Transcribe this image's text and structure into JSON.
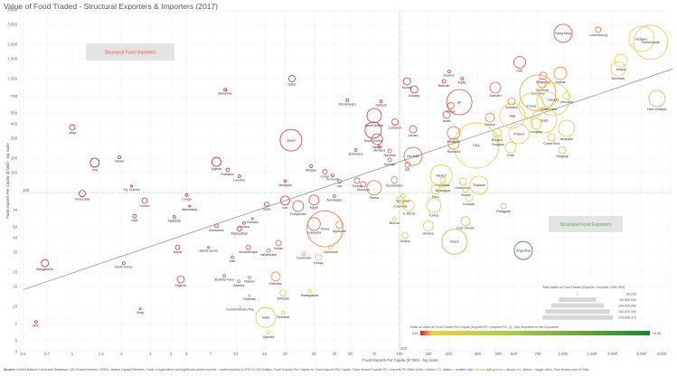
{
  "title": "Value of Food Traded - Structural Exporters & Importers (2017)",
  "chart_data": {
    "type": "scatter",
    "title": "Value of Food Traded - Structural Exporters & Importers (2017)",
    "xlabel": "Food Exports Per Capita ($ '000) - log scale",
    "ylabel": "Food Imports Per Capita ($ '000) - log scale",
    "xscale": "log",
    "yscale": "log",
    "xlim": [
      0.5,
      4600
    ],
    "ylim": [
      3.8,
      4600
    ],
    "xticks": [
      0.5,
      0.7,
      1,
      1.5,
      2,
      3,
      4,
      5,
      7,
      10,
      15,
      20,
      30,
      40,
      50,
      70,
      100,
      150,
      200,
      300,
      400,
      500,
      700,
      1000,
      1500,
      2000,
      3000,
      4000
    ],
    "xtick_labels": [
      "0.5",
      "0.7",
      "1",
      "1.5",
      "2",
      "3",
      "4",
      "5",
      "7",
      "10",
      "15",
      "20",
      "30",
      "40",
      "50",
      "70",
      "100",
      "150",
      "200",
      "300",
      "400",
      "500",
      "700",
      "1,000",
      "1,500",
      "2,000",
      "3,000",
      "4,000"
    ],
    "yticks": [
      4,
      5,
      7,
      10,
      15,
      20,
      30,
      40,
      50,
      70,
      150,
      200,
      300,
      400,
      500,
      700,
      1000,
      1500,
      2000,
      3000,
      4000
    ],
    "ytick_labels": [
      "4",
      "5",
      "7",
      "10",
      "15",
      "20",
      "30",
      "40",
      "50",
      "70",
      "150",
      "200",
      "300",
      "400",
      "500",
      "700",
      "1,000",
      "1,500",
      "2,000",
      "3,000",
      "4,000"
    ],
    "reference_lines": {
      "x": 100,
      "y": 100,
      "x_label": "100",
      "y_label": "100"
    },
    "trend_line": [
      [
        0.5,
        14
      ],
      [
        4700,
        1220
      ]
    ],
    "grid": true,
    "point_fields": [
      "country",
      "exports_pc",
      "imports_pc",
      "total_value_usd_000"
    ],
    "points": [
      [
        "Hong Kong",
        1000,
        2500,
        28600000.0
      ],
      [
        "Luxembourg",
        1640,
        2690,
        2600000.0
      ],
      [
        "Belgium",
        3020,
        2230,
        56000000.0
      ],
      [
        "Netherlands",
        3430,
        2080,
        103000000.0
      ],
      [
        "Ireland",
        2260,
        1440,
        14000000.0
      ],
      [
        "Denmark",
        2170,
        1220,
        18300000.0
      ],
      [
        "UAE",
        543,
        1390,
        12100000.0
      ],
      [
        "Singapore",
        755,
        1060,
        4600000.0
      ],
      [
        "Austria",
        962,
        1115,
        14000000.0
      ],
      [
        "Slovenia",
        746,
        912,
        7100000.0
      ],
      [
        "Germany",
        700,
        747,
        114000000.0
      ],
      [
        "Switzerland",
        816,
        657,
        18300000.0
      ],
      [
        "Canada",
        869,
        657,
        92600000.0
      ],
      [
        "France",
        641,
        578,
        56000000.0
      ],
      [
        "Italy",
        490,
        473,
        56000000.0
      ],
      [
        "Spain",
        766,
        431,
        56000000.0
      ],
      [
        "Slovakia",
        484,
        632,
        4600000.0
      ],
      [
        "Poland",
        536,
        328,
        34600000.0
      ],
      [
        "Hungary",
        683,
        401,
        10300000.0
      ],
      [
        "Lithuania",
        1050,
        707,
        4600000.0
      ],
      [
        "New Zealand",
        3750,
        669,
        23100000.0
      ],
      [
        "Australia",
        1050,
        366,
        23100000.0
      ],
      [
        "Costa Rica",
        848,
        305,
        4600000.0
      ],
      [
        "Uruguay",
        987,
        236,
        4600000.0
      ],
      [
        "Chile",
        478,
        249,
        10300000.0
      ],
      [
        "USA",
        295,
        259,
        178600000.0
      ],
      [
        "Belarus",
        395,
        334,
        7100000.0
      ],
      [
        "Bulgaria",
        400,
        299,
        4600000.0
      ],
      [
        "Greece",
        357,
        456,
        7100000.0
      ],
      [
        "Sweden",
        385,
        833,
        10300000.0
      ],
      [
        "Malaysia",
        214,
        334,
        14000000.0
      ],
      [
        "Romania",
        214,
        268,
        10300000.0
      ],
      [
        "UK",
        232,
        622,
        56000000.0
      ],
      [
        "Oman",
        206,
        578,
        3500000.0
      ],
      [
        "Israel",
        194,
        482,
        4600000.0
      ],
      [
        "Bahrain",
        187,
        946,
        1100000.0
      ],
      [
        "Iceland",
        201,
        1157,
        640000.0
      ],
      [
        "Malta",
        241,
        1000,
        640000.0
      ],
      [
        "Kuwait",
        111,
        946,
        4600000.0
      ],
      [
        "Norway",
        123,
        803,
        4600000.0
      ],
      [
        "Lebanon",
        94,
        416,
        3500000.0
      ],
      [
        "Jordan",
        121,
        359,
        4600000.0
      ],
      [
        "Viet Nam",
        121,
        208,
        28600000.0
      ],
      [
        "DR",
        112,
        176,
        2600000.0
      ],
      [
        "Mexico",
        180,
        141,
        41200000.0
      ],
      [
        "Honduras",
        184,
        129,
        2600000.0
      ],
      [
        "Guatemala",
        244,
        125,
        4600000.0
      ],
      [
        "Nicaragua",
        184,
        116,
        2600000.0
      ],
      [
        "Peru",
        166,
        106,
        7100000.0
      ],
      [
        "Serbia",
        253,
        106,
        2600000.0
      ],
      [
        "Thailand",
        306,
        116,
        28600000.0
      ],
      [
        "Ecuador",
        266,
        90,
        4600000.0
      ],
      [
        "Paraguay",
        432,
        76,
        2600000.0
      ],
      [
        "Colombia",
        101,
        86,
        4600000.0
      ],
      [
        "Sri Lanka",
        105,
        93,
        1800000.0
      ],
      [
        "S. Africa",
        114,
        77,
        10300000.0
      ],
      [
        "Turkey",
        162,
        77,
        18300000.0
      ],
      [
        "Cote d'Ivoire",
        253,
        56,
        7100000.0
      ],
      [
        "Bolivia",
        93,
        59,
        1100000.0
      ],
      [
        "Ukraine",
        150,
        51,
        8600000.0
      ],
      [
        "Ghana",
        108,
        42,
        3500000.0
      ],
      [
        "Brazil",
        217,
        37,
        56000000.0
      ],
      [
        "Argentina",
        571,
        31,
        28600000.0
      ],
      [
        "Russia",
        70,
        110,
        18300000.0
      ],
      [
        "Morocco",
        60,
        118,
        2600000.0
      ],
      [
        "Kazakhstan",
        93,
        129,
        3500000.0
      ],
      [
        "Tunisia",
        55,
        127,
        2600000.0
      ],
      [
        "Lao",
        43,
        125,
        1100000.0
      ],
      [
        "Saudi Arabia",
        70,
        473,
        18300000.0
      ],
      [
        "South Korea",
        69,
        353,
        23100000.0
      ],
      [
        "Taiwan",
        73,
        294,
        10300000.0
      ],
      [
        "Djibouti",
        77,
        632,
        640000.0
      ],
      [
        "Montenegro",
        48,
        645,
        640000.0
      ],
      [
        "Botswana",
        54,
        236,
        640000.0
      ],
      [
        "Jamaica",
        75,
        254,
        640000.0
      ],
      [
        "Namibia",
        87,
        232,
        1100000.0
      ],
      [
        "Georgia",
        87,
        193,
        1100000.0
      ],
      [
        "Azerbaijan",
        40,
        93,
        640000.0
      ],
      [
        "Iran",
        20,
        85,
        7100000.0
      ],
      [
        "Egypt",
        30,
        86,
        8600000.0
      ],
      [
        "Philippines",
        24,
        76,
        10300000.0
      ],
      [
        "Indonesia",
        30,
        53,
        14000000.0
      ],
      [
        "China",
        35,
        48,
        114000000.0
      ],
      [
        "Myanmar",
        43,
        52,
        4600000.0
      ],
      [
        "Cameroon",
        38,
        33,
        1800000.0
      ],
      [
        "Qatar",
        22,
        1000,
        3500000.0
      ],
      [
        "Bahamas",
        8.6,
        800,
        640000.0
      ],
      [
        "Libya",
        1,
        373,
        2600000.0
      ],
      [
        "Japan",
        21.7,
        288,
        41200000.0
      ],
      [
        "Iraq",
        1.37,
        183,
        7100000.0
      ],
      [
        "Gabon",
        1.94,
        204,
        640000.0
      ],
      [
        "Algeria",
        7.6,
        186,
        7100000.0
      ],
      [
        "Palestine",
        8.9,
        158,
        1100000.0
      ],
      [
        "Lesotho",
        10.5,
        139,
        640000.0
      ],
      [
        "Mongolia",
        20,
        126,
        640000.0
      ],
      [
        "Albania",
        28.8,
        170,
        640000.0
      ],
      [
        "Cuba",
        35,
        152,
        1800000.0
      ],
      [
        "Armenia",
        39,
        141,
        640000.0
      ],
      [
        "Eq. Guinea",
        2.3,
        114,
        290000.0
      ],
      [
        "Venezuela",
        1.15,
        98,
        3500000.0
      ],
      [
        "Yemen",
        2.77,
        85,
        2600000.0
      ],
      [
        "Congo",
        5,
        95,
        640000.0
      ],
      [
        "Mauritania",
        5.2,
        76,
        290000.0
      ],
      [
        "Haiti",
        2.4,
        62,
        1100000.0
      ],
      [
        "Tajikistan",
        4.2,
        61,
        640000.0
      ],
      [
        "Zimbabwe",
        7.6,
        51,
        1100000.0
      ],
      [
        "Syria",
        15.4,
        79,
        1800000.0
      ],
      [
        "Gambia",
        12.6,
        59,
        290000.0
      ],
      [
        "Guinea",
        11.2,
        54,
        640000.0
      ],
      [
        "Afghanistan",
        10.5,
        48,
        1800000.0
      ],
      [
        "Nepal",
        4.4,
        33,
        1800000.0
      ],
      [
        "Sierra Leone",
        6.8,
        33,
        290000.0
      ],
      [
        "Mozambique",
        11.9,
        33,
        1800000.0
      ],
      [
        "Mali",
        9.5,
        27,
        640000.0
      ],
      [
        "Sudan",
        18.2,
        36,
        2600000.0
      ],
      [
        "Uzbekistan",
        15.8,
        31,
        1100000.0
      ],
      [
        "Bangladesh",
        0.68,
        24,
        4600000.0
      ],
      [
        "North Korea",
        2.06,
        24,
        640000.0
      ],
      [
        "Burkina Faso",
        8.5,
        18.6,
        640000.0
      ],
      [
        "Malawi",
        12.1,
        18,
        640000.0
      ],
      [
        "Nigeria",
        4.6,
        17.3,
        4600000.0
      ],
      [
        "Pakistan",
        17.5,
        18.3,
        7100000.0
      ],
      [
        "Zambia",
        10.4,
        16.6,
        640000.0
      ],
      [
        "Rwanda",
        12.1,
        12.4,
        290000.0
      ],
      [
        "Ethiopia",
        19.4,
        13.1,
        3500000.0
      ],
      [
        "Madagascar",
        28.3,
        13.6,
        1100000.0
      ],
      [
        "Central African Rep",
        10.6,
        10,
        72000.0
      ],
      [
        "Chad",
        2.6,
        9.5,
        290000.0
      ],
      [
        "India",
        15.2,
        8,
        34600000.0
      ],
      [
        "Tanzania",
        19.4,
        8.8,
        1100000.0
      ],
      [
        "Uganda",
        15.8,
        5.9,
        1100000.0
      ],
      [
        "DRC",
        0.6,
        7.3,
        640000.0
      ],
      [
        "Cambodia",
        26,
        29,
        1100000.0
      ],
      [
        "Kenya",
        32,
        27,
        3500000.0
      ]
    ],
    "annotations": {
      "importers": "Structural Food Importers",
      "exporters": "Structural Food Exporters"
    },
    "size_legend": {
      "title": "Total Value of Food Traded (Exports + Imports, US$ '000)",
      "values": [
        33168,
        50000000,
        100000000,
        150000000,
        178636473
      ],
      "labels": [
        "33,168",
        "50,000,000",
        "100,000,000",
        "150,000,000",
        "178,636,473"
      ]
    },
    "color_legend": {
      "title": "Ratio of Value of Food Traded Per Capita (Exports PC / Imports PC, x) - Net Importers to Net Exporters",
      "min": 0,
      "max": 19.55,
      "min_label": "0.00",
      "max_label": "19.55"
    }
  },
  "colors": {
    "red": "#cf2030",
    "orange": "#f5a04a",
    "yellow": "#e8d050",
    "green": "#2a7d3a",
    "refline": "#7cc47c",
    "importers_text": "#e0554a",
    "exporters_text": "#5aa65a"
  },
  "footer": {
    "source_label": "Source:",
    "source_text": " United Nations Comtrade Database, US Census Bureau, USDA, Jadara Capital Partners. Trade in Agriculture and Agrifoods (world imports + world exports) in 2017 in US Dollars. Food Exports Per Capita vs. Food Imports Per Capita. Color shows Exports PC / Imports PC Ratio (",
    "reds": "reds",
    "mid1": " = below 1.0, darker = smaller ratio; ",
    "yellows": "yellows",
    "and": " and ",
    "greens": "greens",
    "mid2": " = above 1.0, darker = larger ratio). Size shows sum of Total..."
  }
}
